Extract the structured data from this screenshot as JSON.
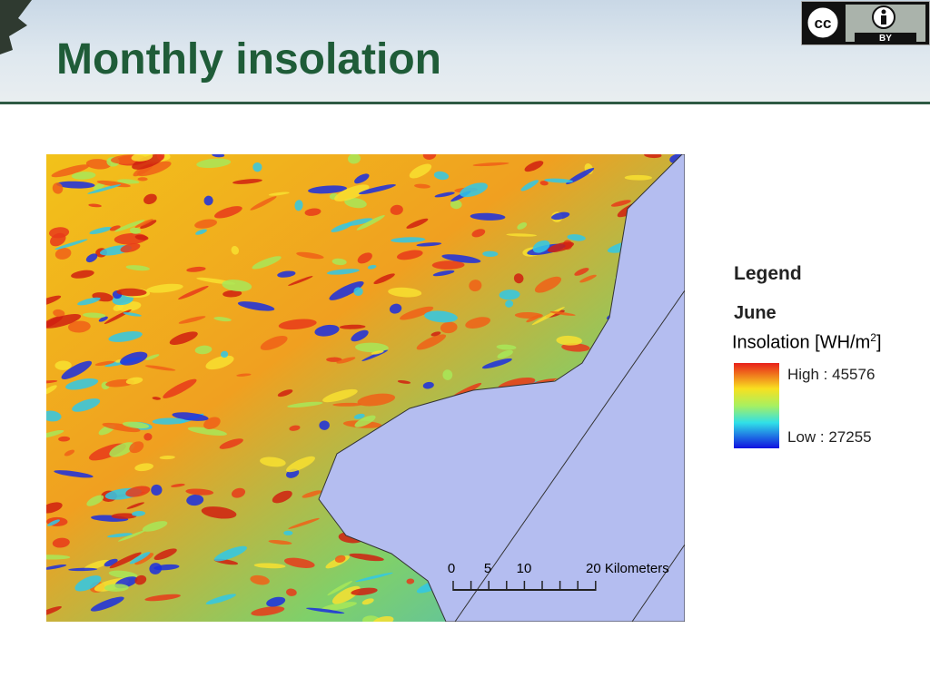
{
  "header": {
    "title": "Monthly insolation",
    "license_badge": "BY"
  },
  "map": {
    "scale_labels": [
      "0",
      "5",
      "10",
      "20 Kilometers"
    ]
  },
  "legend": {
    "title": "Legend",
    "month": "June",
    "quantity": {
      "text": "Insolation [WH/m",
      "superscript": "2",
      "closing": "]"
    },
    "high": "High : 45576",
    "low": "Low : 27255"
  }
}
